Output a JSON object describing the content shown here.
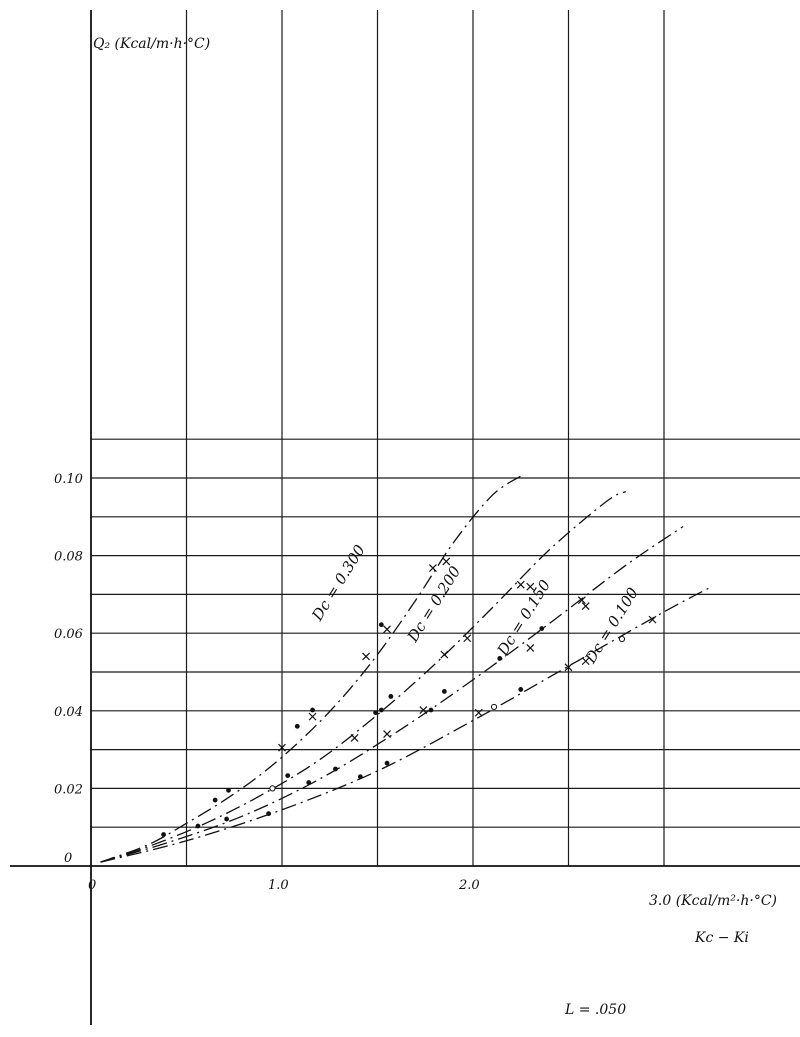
{
  "chart_data": {
    "type": "scatter",
    "title": "",
    "ylabel": "Q₂ (Kcal/m·h·°C)",
    "xlabel": "3.0 (Kcal/m²·h·°C)",
    "xlabel_sub": "Kc − Ki",
    "note": "L = .050",
    "xlim": [
      0,
      3.45
    ],
    "ylim": [
      0,
      0.11
    ],
    "x_ticks": [
      {
        "value": 0,
        "label": "0"
      },
      {
        "value": 1.0,
        "label": "1.0"
      },
      {
        "value": 2.0,
        "label": "2.0"
      }
    ],
    "y_ticks": [
      {
        "value": 0,
        "label": "0"
      },
      {
        "value": 0.02,
        "label": "0.02"
      },
      {
        "value": 0.04,
        "label": "0.04"
      },
      {
        "value": 0.06,
        "label": "0.06"
      },
      {
        "value": 0.08,
        "label": "0.08"
      },
      {
        "value": 0.1,
        "label": "0.10"
      }
    ],
    "grid": true,
    "series": [
      {
        "name": "Dc = 0.300",
        "label_at": [
          1.2,
          0.063
        ],
        "curve_x": [
          0.05,
          0.3,
          0.5,
          0.7,
          0.9,
          1.1,
          1.3,
          1.5,
          1.7,
          1.9,
          2.1,
          2.25
        ],
        "curve_y": [
          0.001,
          0.0055,
          0.011,
          0.017,
          0.024,
          0.0325,
          0.0425,
          0.0545,
          0.0685,
          0.0835,
          0.0955,
          0.1005
        ],
        "points": [
          {
            "x": 0.65,
            "y": 0.017,
            "m": "dot"
          },
          {
            "x": 0.72,
            "y": 0.0195,
            "m": "dot"
          },
          {
            "x": 1.0,
            "y": 0.0305,
            "m": "cross"
          },
          {
            "x": 1.08,
            "y": 0.036,
            "m": "dot"
          },
          {
            "x": 1.16,
            "y": 0.0385,
            "m": "cross"
          },
          {
            "x": 1.16,
            "y": 0.0402,
            "m": "dot"
          },
          {
            "x": 1.44,
            "y": 0.054,
            "m": "cross"
          },
          {
            "x": 1.52,
            "y": 0.0622,
            "m": "dot"
          },
          {
            "x": 1.55,
            "y": 0.061,
            "m": "cross"
          },
          {
            "x": 1.79,
            "y": 0.0768,
            "m": "cross"
          },
          {
            "x": 1.86,
            "y": 0.0785,
            "m": "cross"
          }
        ]
      },
      {
        "name": "Dc = 0.200",
        "label_at": [
          1.7,
          0.0575
        ],
        "curve_x": [
          0.05,
          0.3,
          0.6,
          0.9,
          1.2,
          1.5,
          1.8,
          2.1,
          2.4,
          2.7,
          2.8
        ],
        "curve_y": [
          0.001,
          0.005,
          0.011,
          0.0185,
          0.0275,
          0.039,
          0.052,
          0.0665,
          0.0815,
          0.094,
          0.0965
        ],
        "points": [
          {
            "x": 0.56,
            "y": 0.0103,
            "m": "dot"
          },
          {
            "x": 0.95,
            "y": 0.02,
            "m": "open"
          },
          {
            "x": 1.03,
            "y": 0.0233,
            "m": "dot"
          },
          {
            "x": 1.28,
            "y": 0.025,
            "m": "dot"
          },
          {
            "x": 1.38,
            "y": 0.033,
            "m": "cross"
          },
          {
            "x": 1.49,
            "y": 0.0395,
            "m": "dot"
          },
          {
            "x": 1.52,
            "y": 0.0402,
            "m": "dot"
          },
          {
            "x": 1.57,
            "y": 0.0437,
            "m": "dot"
          },
          {
            "x": 1.85,
            "y": 0.0545,
            "m": "cross"
          },
          {
            "x": 1.97,
            "y": 0.0587,
            "m": "cross"
          },
          {
            "x": 2.25,
            "y": 0.0725,
            "m": "cross"
          },
          {
            "x": 2.3,
            "y": 0.072,
            "m": "cross"
          }
        ]
      },
      {
        "name": "Dc = 0.150",
        "label_at": [
          2.17,
          0.054
        ],
        "curve_x": [
          0.05,
          0.4,
          0.8,
          1.2,
          1.6,
          2.0,
          2.4,
          2.8,
          3.1
        ],
        "curve_y": [
          0.001,
          0.006,
          0.013,
          0.0225,
          0.0345,
          0.048,
          0.0625,
          0.0775,
          0.0875
        ],
        "points": [
          {
            "x": 0.38,
            "y": 0.0081,
            "m": "dot"
          },
          {
            "x": 0.71,
            "y": 0.0121,
            "m": "dot"
          },
          {
            "x": 1.14,
            "y": 0.0215,
            "m": "dot"
          },
          {
            "x": 1.55,
            "y": 0.034,
            "m": "cross"
          },
          {
            "x": 1.74,
            "y": 0.0402,
            "m": "cross"
          },
          {
            "x": 1.78,
            "y": 0.0402,
            "m": "dot"
          },
          {
            "x": 1.85,
            "y": 0.045,
            "m": "dot"
          },
          {
            "x": 2.14,
            "y": 0.0535,
            "m": "dot"
          },
          {
            "x": 2.3,
            "y": 0.0562,
            "m": "cross"
          },
          {
            "x": 2.36,
            "y": 0.0612,
            "m": "dot"
          },
          {
            "x": 2.57,
            "y": 0.0685,
            "m": "cross"
          },
          {
            "x": 2.59,
            "y": 0.067,
            "m": "cross"
          }
        ]
      },
      {
        "name": "Dc = 0.100",
        "label_at": [
          2.63,
          0.052
        ],
        "curve_x": [
          0.05,
          0.5,
          1.0,
          1.5,
          2.0,
          2.5,
          3.0,
          3.25
        ],
        "curve_y": [
          0.001,
          0.0065,
          0.0145,
          0.0245,
          0.0375,
          0.0515,
          0.0655,
          0.072
        ],
        "points": [
          {
            "x": 0.93,
            "y": 0.0135,
            "m": "dot"
          },
          {
            "x": 1.41,
            "y": 0.023,
            "m": "dot"
          },
          {
            "x": 1.55,
            "y": 0.0265,
            "m": "dot"
          },
          {
            "x": 2.03,
            "y": 0.0395,
            "m": "cross"
          },
          {
            "x": 2.11,
            "y": 0.041,
            "m": "open"
          },
          {
            "x": 2.25,
            "y": 0.0455,
            "m": "dot"
          },
          {
            "x": 2.5,
            "y": 0.0512,
            "m": "cross"
          },
          {
            "x": 2.59,
            "y": 0.0528,
            "m": "cross"
          },
          {
            "x": 2.78,
            "y": 0.0585,
            "m": "open"
          },
          {
            "x": 2.94,
            "y": 0.0635,
            "m": "cross"
          }
        ]
      }
    ]
  }
}
